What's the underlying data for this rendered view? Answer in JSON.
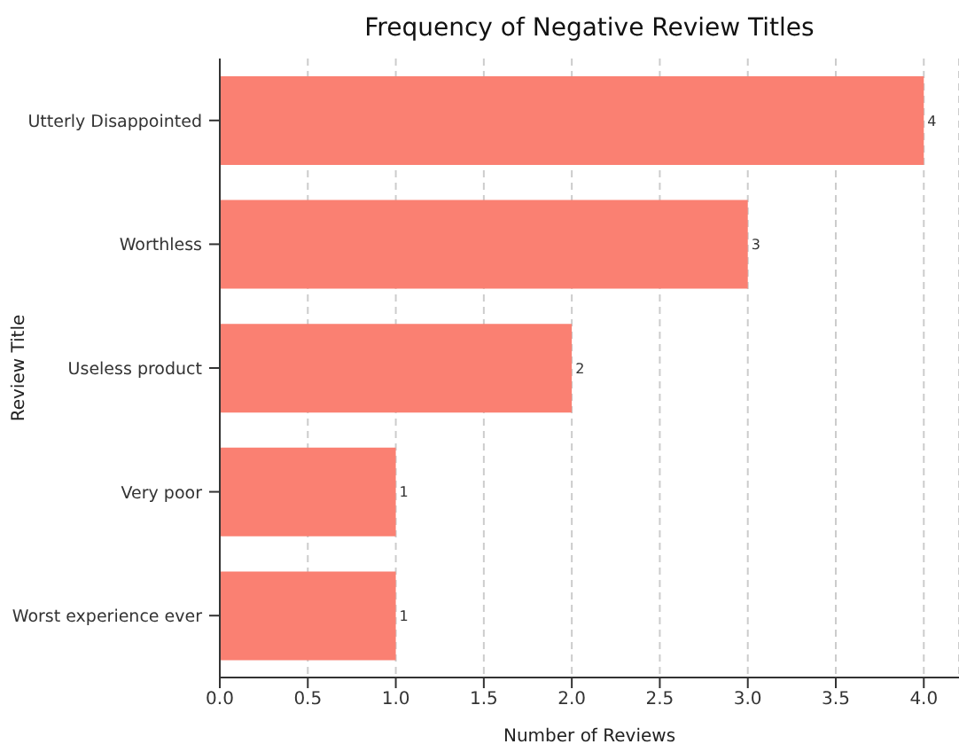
{
  "chart_data": {
    "type": "bar",
    "orientation": "horizontal",
    "title": "Frequency of Negative Review Titles",
    "xlabel": "Number of Reviews",
    "ylabel": "Review Title",
    "categories": [
      "Utterly Disappointed",
      "Worthless",
      "Useless product",
      "Very poor",
      "Worst experience ever"
    ],
    "values": [
      4,
      3,
      2,
      1,
      1
    ],
    "color": "#fa8072",
    "data_labels": true,
    "xlim": [
      0,
      4.2
    ],
    "xticks": [
      {
        "value": 0,
        "label": "0.0"
      },
      0.5,
      {
        "value": 1,
        "label": "1.0"
      },
      1.5,
      {
        "value": 2,
        "label": "2.0"
      },
      2.5,
      {
        "value": 3,
        "label": "3.0"
      },
      3.5,
      {
        "value": 4,
        "label": "4.0"
      }
    ],
    "grid": "x"
  }
}
